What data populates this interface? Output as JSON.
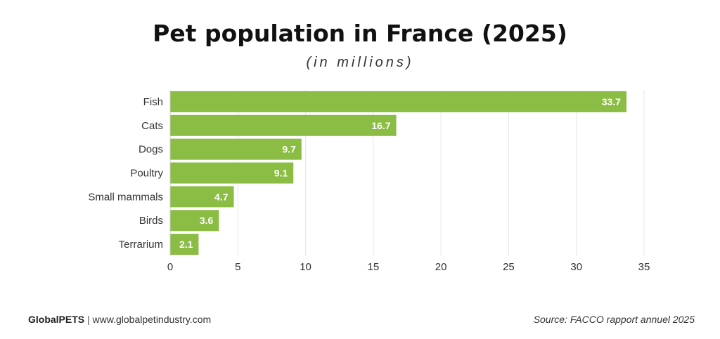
{
  "header": {
    "title": "Pet population in France (2025)",
    "subtitle": "(in millions)"
  },
  "footer": {
    "brand": "GlobalPETS",
    "separator": "|",
    "website": "www.globalpetindustry.com",
    "source": "Source: FACCO rapport annuel 2025"
  },
  "colors": {
    "bar": "#8bbd44",
    "grid": "#e6e6e6",
    "bar_label": "#ffffff",
    "text": "#333333"
  },
  "chart_data": {
    "type": "bar",
    "orientation": "horizontal",
    "title": "Pet population in France (2025)",
    "subtitle": "(in millions)",
    "categories": [
      "Fish",
      "Cats",
      "Dogs",
      "Poultry",
      "Small mammals",
      "Birds",
      "Terrarium"
    ],
    "values": [
      33.7,
      16.7,
      9.7,
      9.1,
      4.7,
      3.6,
      2.1
    ],
    "value_labels": [
      "33.7",
      "16.7",
      "9.7",
      "9.1",
      "4.7",
      "3.6",
      "2.1"
    ],
    "xlim": [
      0,
      35
    ],
    "xticks": [
      0,
      5,
      10,
      15,
      20,
      25,
      30,
      35
    ],
    "xlabel": "",
    "ylabel": "",
    "grid": true,
    "legend": "none"
  }
}
